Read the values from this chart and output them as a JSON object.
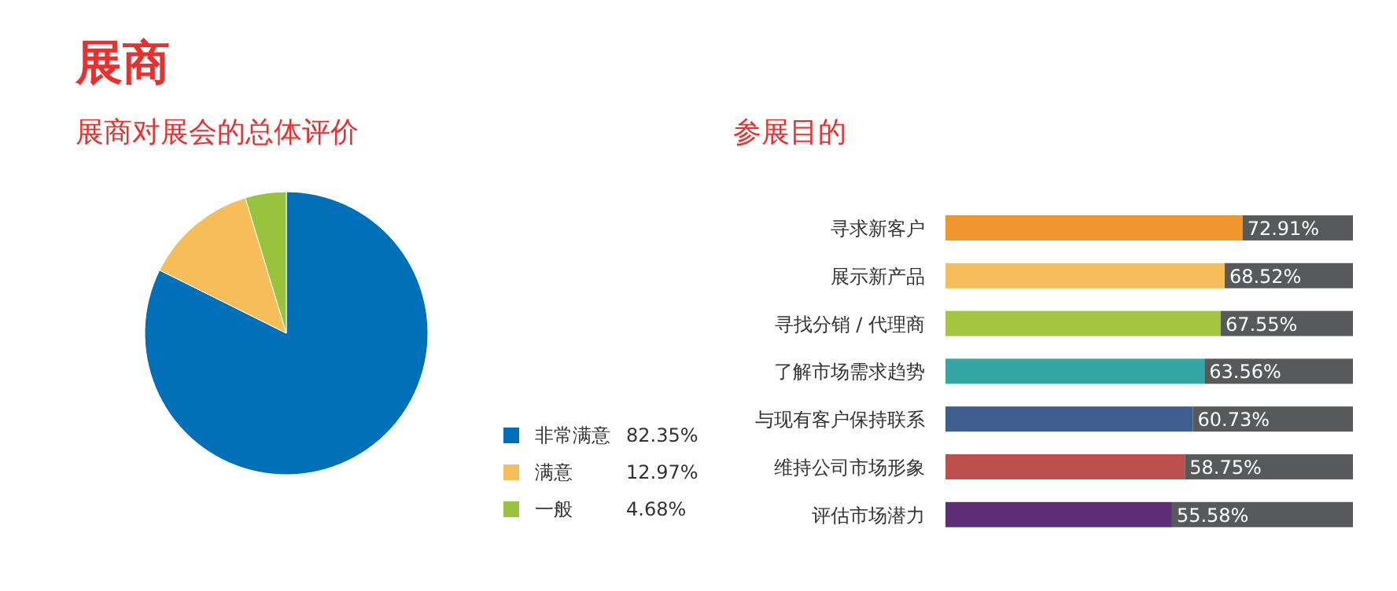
{
  "chart_data": [
    {
      "type": "pie",
      "title": "展商",
      "subtitle": "展商对展会的总体评价",
      "categories": [
        "非常满意",
        "满意",
        "一般"
      ],
      "values": [
        82.35,
        12.97,
        4.68
      ],
      "colors": [
        "#0070b8",
        "#f6be58",
        "#98c43d"
      ],
      "value_labels": [
        "82.35%",
        "12.97%",
        "4.68%"
      ],
      "legend": "bottom right"
    },
    {
      "type": "bar",
      "title": "参展目的",
      "orientation": "horizontal",
      "stacked": true,
      "categories": [
        "寻求新客户",
        "展示新产品",
        "寻找分销 / 代理商",
        "了解市场需求趋势",
        "与现有客户保持联系",
        "维持公司市场形象",
        "评估市场潜力"
      ],
      "xlim": [
        0,
        100
      ],
      "tick_labels": "y",
      "series": [
        {
          "colors": [
            "#f0962c",
            "#f6be58",
            "#a3c63e",
            "#34a7a4",
            "#3e5f8e",
            "#bd4f4d",
            "#5d2d76"
          ],
          "values": [
            72.91,
            68.52,
            67.55,
            63.56,
            60.73,
            58.75,
            55.58
          ],
          "value_labels": [
            "72.91%",
            "68.52%",
            "67.55%",
            "63.56%",
            "60.73%",
            "58.75%",
            "55.58%"
          ]
        },
        {
          "color": "#58595b",
          "values": [
            27.09,
            31.48,
            32.45,
            36.44,
            39.27,
            41.25,
            44.42
          ]
        }
      ]
    }
  ]
}
